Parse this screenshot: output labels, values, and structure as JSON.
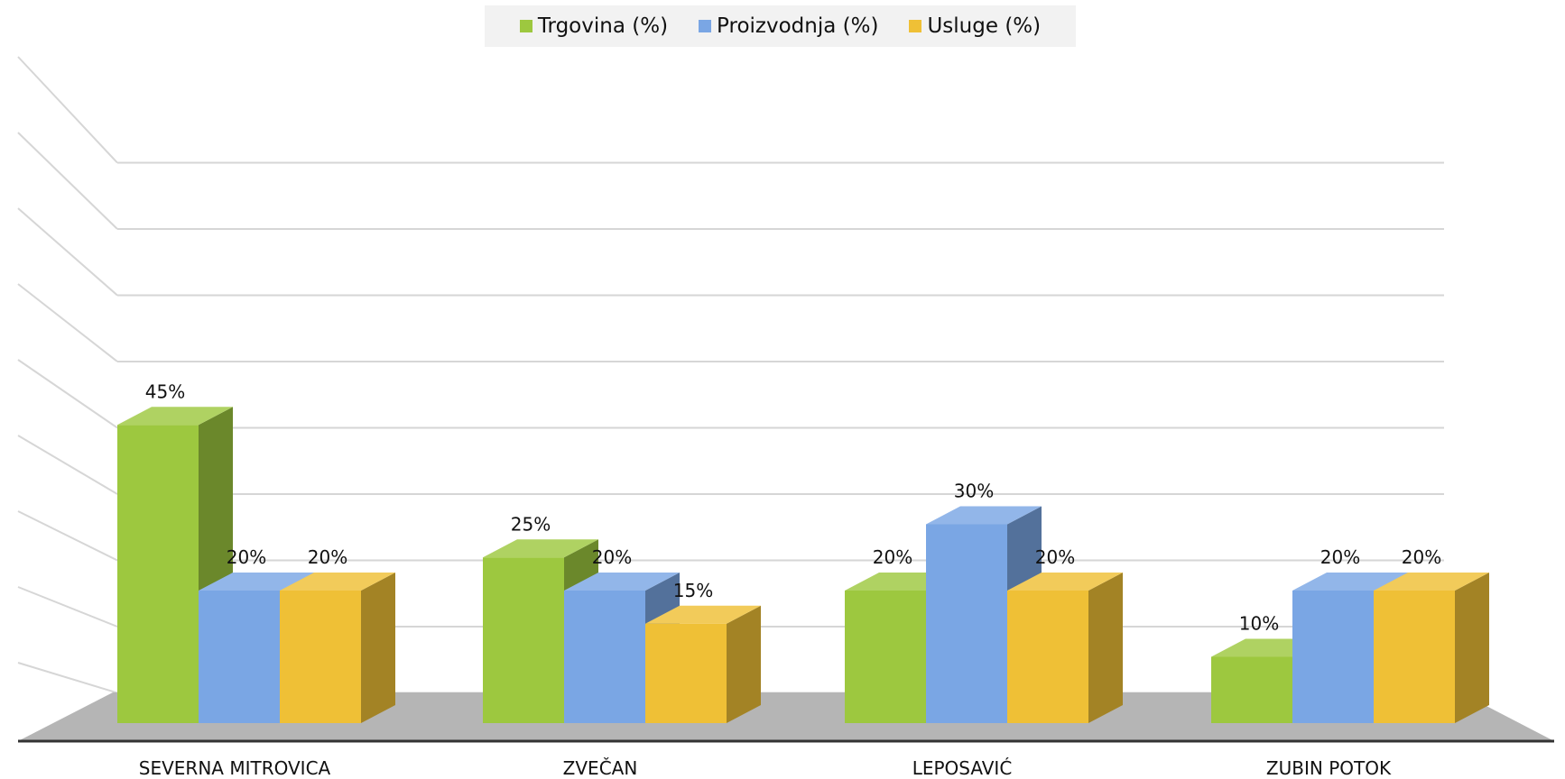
{
  "colors": {
    "trgovina": "#9dc83f",
    "proizvodnja": "#7aa6e4",
    "usluge": "#efc036",
    "floor": "#b5b5b5",
    "grid": "#d6d6d6"
  },
  "legend": [
    {
      "label": "Trgovina  (%)",
      "color_key": "trgovina"
    },
    {
      "label": "Proizvodnja (%)",
      "color_key": "proizvodnja"
    },
    {
      "label": "Usluge (%)",
      "color_key": "usluge"
    }
  ],
  "chart_data": {
    "type": "bar",
    "style": "3d-clustered",
    "categories": [
      "SEVERNA MITROVICA",
      "ZVEČAN",
      "LEPOSAVIĆ",
      "ZUBIN POTOK"
    ],
    "series": [
      {
        "name": "Trgovina  (%)",
        "color_key": "trgovina",
        "values": [
          45,
          25,
          20,
          10
        ],
        "labels": [
          "45%",
          "25%",
          "20%",
          "10%"
        ]
      },
      {
        "name": "Proizvodnja (%)",
        "color_key": "proizvodnja",
        "values": [
          20,
          20,
          30,
          20
        ],
        "labels": [
          "20%",
          "20%",
          "30%",
          "20%"
        ]
      },
      {
        "name": "Usluge (%)",
        "color_key": "usluge",
        "values": [
          20,
          15,
          20,
          20
        ],
        "labels": [
          "20%",
          "15%",
          "20%",
          "20%"
        ]
      }
    ],
    "title": "",
    "xlabel": "",
    "ylabel": "",
    "ylim": [
      0,
      45
    ],
    "grid": true,
    "legend_position": "top-center"
  }
}
